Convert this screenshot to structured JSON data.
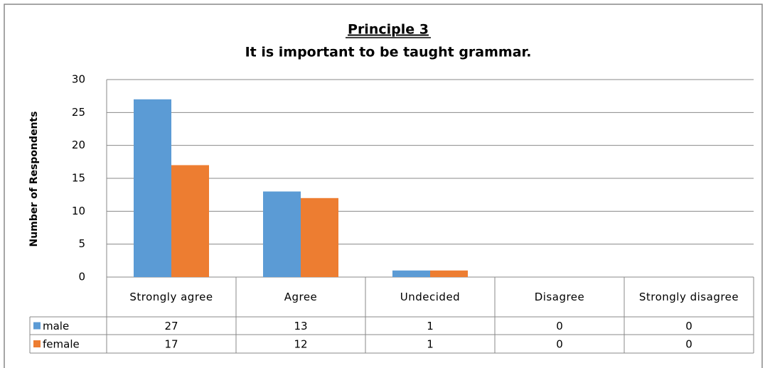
{
  "chart_data": {
    "type": "bar",
    "title": "Principle 3",
    "subtitle": "It is important to be taught grammar.",
    "y_label": "Number of Respondents",
    "categories": [
      "Strongly agree",
      "Agree",
      "Undecided",
      "Disagree",
      "Strongly disagree"
    ],
    "series": [
      {
        "name": "male",
        "color": "#5b9bd5",
        "values": [
          27,
          13,
          1,
          0,
          0
        ]
      },
      {
        "name": "female",
        "color": "#ed7d31",
        "values": [
          17,
          12,
          1,
          0,
          0
        ]
      }
    ],
    "ylim": [
      0,
      30
    ],
    "yticks": [
      0,
      5,
      10,
      15,
      20,
      25,
      30
    ],
    "grid": true
  }
}
